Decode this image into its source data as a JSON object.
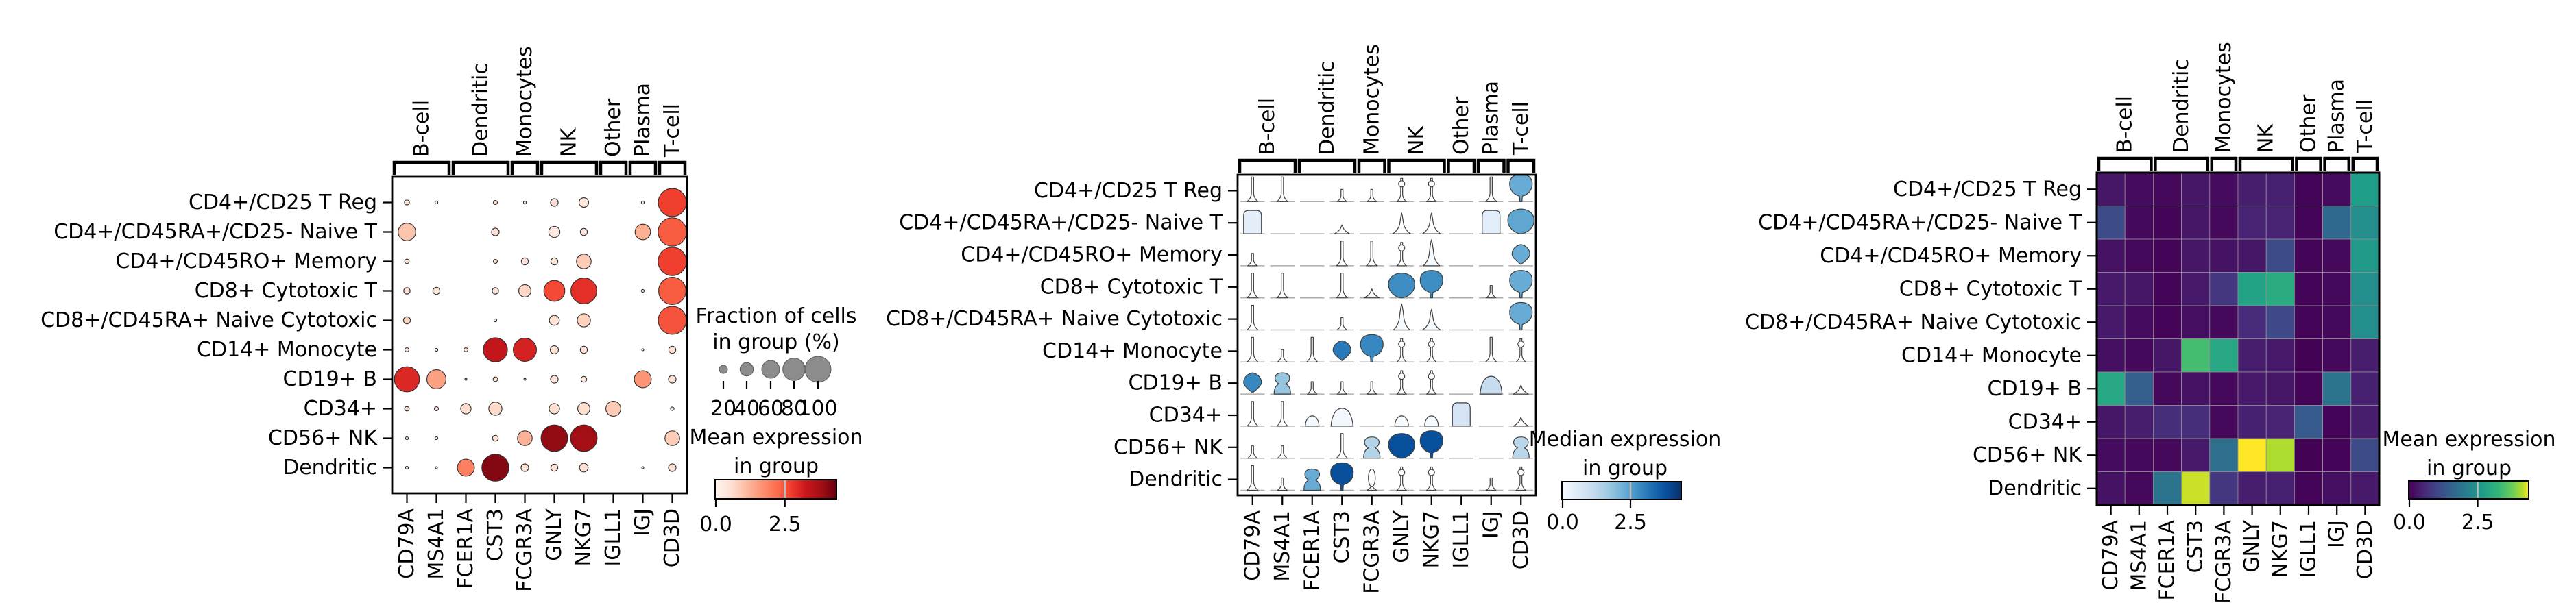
{
  "figure": {
    "rows": [
      "CD4+/CD25 T Reg",
      "CD4+/CD45RA+/CD25- Naive T",
      "CD4+/CD45RO+ Memory",
      "CD8+ Cytotoxic T",
      "CD8+/CD45RA+ Naive Cytotoxic",
      "CD14+ Monocyte",
      "CD19+ B",
      "CD34+",
      "CD56+ NK",
      "Dendritic"
    ],
    "columns": [
      "CD79A",
      "MS4A1",
      "FCER1A",
      "CST3",
      "FCGR3A",
      "GNLY",
      "NKG7",
      "IGLL1",
      "IGJ",
      "CD3D"
    ],
    "groups": [
      {
        "label": "B-cell",
        "start": 0,
        "end": 1
      },
      {
        "label": "Dendritic",
        "start": 2,
        "end": 3
      },
      {
        "label": "Monocytes",
        "start": 4,
        "end": 4
      },
      {
        "label": "NK",
        "start": 5,
        "end": 6
      },
      {
        "label": "Other",
        "start": 7,
        "end": 7
      },
      {
        "label": "Plasma",
        "start": 8,
        "end": 8
      },
      {
        "label": "T-cell",
        "start": 9,
        "end": 9
      }
    ],
    "vmax": 4.35,
    "colors": {
      "dot_cmap": "Reds",
      "violin_cmap": "Blues",
      "heat_cmap": "viridis",
      "tick_color": "#000000",
      "grid_color": "#909090",
      "baseline_color": "#adadad"
    }
  },
  "chart_data": [
    {
      "type": "scatter",
      "variant": "dotplot",
      "legend": {
        "size_title_lines": [
          "Fraction of cells",
          "in group (%)"
        ],
        "size_ticks": [
          "20",
          "40",
          "60",
          "80",
          "100"
        ],
        "size_tick_values": [
          20,
          40,
          60,
          80,
          100
        ],
        "color_title_lines": [
          "Mean expression",
          "in group"
        ],
        "color_ticks": [
          "0.0",
          "2.5"
        ],
        "color_tick_values": [
          0.0,
          2.5
        ],
        "cmap": "Reds"
      },
      "fraction_pct": [
        [
          3,
          1,
          0,
          2,
          1,
          7,
          11,
          0,
          1,
          95
        ],
        [
          37,
          0,
          0,
          7,
          0,
          15,
          6,
          0,
          29,
          97
        ],
        [
          2.5,
          0,
          0,
          2,
          6,
          6,
          26,
          0,
          0,
          97
        ],
        [
          5,
          6,
          0,
          5,
          18,
          53,
          81,
          0,
          1,
          90
        ],
        [
          6,
          0,
          0,
          1,
          0,
          12,
          21,
          0,
          0,
          95
        ],
        [
          2,
          1,
          2,
          70,
          65,
          8,
          6,
          0,
          0.5,
          6
        ],
        [
          76,
          44,
          0.5,
          2.5,
          0.5,
          7,
          4,
          0,
          35,
          7
        ],
        [
          2.5,
          2,
          13,
          21,
          0,
          13,
          18,
          27,
          0,
          1.5
        ],
        [
          1,
          1,
          0,
          4,
          26,
          85,
          85,
          0,
          0,
          26
        ],
        [
          1,
          0.5,
          35,
          88,
          7,
          6,
          9,
          0,
          0.5,
          7
        ]
      ],
      "mean_expression": [
        [
          0.5,
          0.3,
          0,
          0.5,
          0.3,
          0.5,
          0.35,
          0,
          0.3,
          2.7
        ],
        [
          1.0,
          0,
          0,
          0.5,
          0,
          0.3,
          0.4,
          0,
          1.3,
          2.4
        ],
        [
          0.5,
          0,
          0,
          0.5,
          0.5,
          0.4,
          0.9,
          0,
          0,
          2.7
        ],
        [
          0.5,
          0.4,
          0,
          0.5,
          0.7,
          2.6,
          2.9,
          0,
          0.3,
          2.4
        ],
        [
          0.75,
          0,
          0,
          0.4,
          0,
          0.55,
          0.8,
          0,
          0,
          2.5
        ],
        [
          0.4,
          0.3,
          0.5,
          3.35,
          3.1,
          0.5,
          0.5,
          0,
          0.3,
          0.5
        ],
        [
          3.0,
          1.5,
          0.3,
          0.5,
          0.3,
          0.5,
          0.4,
          0,
          1.65,
          0.5
        ],
        [
          0.5,
          0.4,
          0.6,
          0.65,
          0,
          0.6,
          0.6,
          0.9,
          0,
          0.4
        ],
        [
          0.4,
          0.3,
          0,
          0.5,
          1.25,
          3.95,
          3.8,
          0,
          0,
          0.85
        ],
        [
          0.4,
          0.2,
          1.95,
          4.1,
          0.5,
          0.5,
          0.5,
          0,
          0.3,
          0.5
        ]
      ]
    },
    {
      "type": "violin",
      "variant": "stacked_violin",
      "legend": {
        "color_title_lines": [
          "Median expression",
          "in group"
        ],
        "color_ticks": [
          "0.0",
          "2.5"
        ],
        "color_tick_values": [
          0.0,
          2.5
        ],
        "cmap": "Blues"
      },
      "median_expression": [
        [
          0,
          0,
          0,
          0,
          0,
          0,
          0,
          0,
          0,
          2.3
        ],
        [
          0.45,
          0,
          0,
          0,
          0,
          0,
          0,
          0,
          0.5,
          2.4
        ],
        [
          0,
          0,
          0,
          0,
          0,
          0,
          0.05,
          0,
          0,
          2.3
        ],
        [
          0,
          0,
          0,
          0,
          0.05,
          2.8,
          2.8,
          0,
          0,
          2.3
        ],
        [
          0,
          0,
          0,
          0,
          0,
          0.05,
          0.05,
          0,
          0,
          2.3
        ],
        [
          0,
          0,
          0,
          3.1,
          2.9,
          0,
          0,
          0,
          0,
          0
        ],
        [
          2.9,
          1.8,
          0,
          0,
          0,
          0,
          0,
          0,
          1.1,
          0
        ],
        [
          0,
          0,
          0.1,
          0.1,
          0,
          0.05,
          0.05,
          0.8,
          0,
          0
        ],
        [
          0,
          0,
          0,
          0,
          1.4,
          3.8,
          3.8,
          0,
          0,
          1.3
        ],
        [
          0,
          0,
          2.3,
          3.8,
          0,
          0,
          0,
          0,
          0,
          0
        ]
      ],
      "shapes": [
        [
          "spike",
          "spike",
          "line",
          "spike-s",
          "spike-s",
          "bulb",
          "bulb",
          "line",
          "spike",
          "fan"
        ],
        [
          "box",
          "line",
          "line",
          "tent-s",
          "line",
          "tent",
          "tent",
          "line",
          "box",
          "blob"
        ],
        [
          "spike-s",
          "line",
          "line",
          "spike",
          "spike",
          "bulb",
          "tent-l",
          "line",
          "line",
          "kite"
        ],
        [
          "spike",
          "spike",
          "line",
          "spike",
          "tent-s",
          "blob",
          "fan",
          "line",
          "spike-s",
          "fan"
        ],
        [
          "spike",
          "line",
          "line",
          "spike-s",
          "line",
          "tent-l",
          "tent",
          "line",
          "line",
          "fan"
        ],
        [
          "spike",
          "spike-s",
          "spike",
          "kite",
          "fan",
          "bulb",
          "bulb",
          "line",
          "spike",
          "bulb"
        ],
        [
          "kite",
          "hg",
          "spike-s",
          "spike-s",
          "spike-s",
          "bulb",
          "bulb",
          "line",
          "dome",
          "tent-s"
        ],
        [
          "spike",
          "spike",
          "dome-s",
          "dome",
          "line",
          "dome-s",
          "dome-s",
          "box",
          "line",
          "tent-s"
        ],
        [
          "spike-s",
          "spike-s",
          "line",
          "spike",
          "hg",
          "blob",
          "fan",
          "line",
          "line",
          "hg"
        ],
        [
          "spike",
          "spike-s",
          "hg",
          "fan",
          "loop",
          "bulb",
          "bulb",
          "line",
          "spike-s",
          "bulb"
        ]
      ]
    },
    {
      "type": "heatmap",
      "variant": "matrixplot",
      "legend": {
        "color_title_lines": [
          "Mean expression",
          "in group"
        ],
        "color_ticks": [
          "0.0",
          "2.5"
        ],
        "color_tick_values": [
          0.0,
          2.5
        ],
        "cmap": "viridis"
      },
      "mean_expression": [
        [
          0.3,
          0.15,
          0.1,
          0.3,
          0.15,
          0.4,
          0.45,
          0.05,
          0.15,
          2.7
        ],
        [
          1.1,
          0.1,
          0.05,
          0.3,
          0.1,
          0.5,
          0.5,
          0.05,
          1.65,
          2.4
        ],
        [
          0.25,
          0.1,
          0.05,
          0.3,
          0.25,
          0.3,
          1.1,
          0.05,
          0.1,
          2.6
        ],
        [
          0.35,
          0.3,
          0.05,
          0.35,
          0.8,
          2.8,
          3.0,
          0.05,
          0.1,
          2.4
        ],
        [
          0.35,
          0.15,
          0.05,
          0.2,
          0.1,
          0.6,
          1.05,
          0.05,
          0.1,
          2.4
        ],
        [
          0.2,
          0.1,
          0.3,
          3.4,
          2.9,
          0.4,
          0.35,
          0.02,
          0.1,
          0.4
        ],
        [
          2.9,
          1.5,
          0.1,
          0.25,
          0.1,
          0.35,
          0.3,
          0.05,
          1.9,
          0.45
        ],
        [
          0.3,
          0.4,
          0.65,
          0.65,
          0.1,
          0.45,
          0.5,
          1.4,
          0.05,
          0.4
        ],
        [
          0.15,
          0.1,
          0.1,
          0.35,
          1.8,
          4.35,
          4.1,
          0.02,
          0.05,
          1.1
        ],
        [
          0.25,
          0.1,
          1.9,
          4.2,
          0.8,
          0.4,
          0.45,
          0.05,
          0.2,
          0.35
        ]
      ]
    }
  ]
}
